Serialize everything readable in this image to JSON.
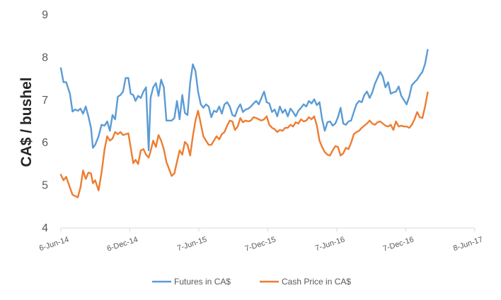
{
  "chart_data": {
    "type": "line",
    "title": "",
    "xlabel": "",
    "ylabel": "CA$ / bushel",
    "ylim": [
      4,
      9
    ],
    "yticks": [
      4,
      5,
      6,
      7,
      8,
      9
    ],
    "xlim": [
      "2014-06-06",
      "2017-06-08"
    ],
    "xticks": [
      {
        "date": "2014-06-06",
        "label": "6-Jun-14"
      },
      {
        "date": "2014-12-06",
        "label": "6-Dec-14"
      },
      {
        "date": "2015-06-07",
        "label": "7-Jun-15"
      },
      {
        "date": "2015-12-07",
        "label": "7-Dec-15"
      },
      {
        "date": "2016-06-07",
        "label": "7-Jun-16"
      },
      {
        "date": "2016-12-07",
        "label": "7-Dec-16"
      },
      {
        "date": "2017-06-08",
        "label": "8-Jun-17"
      }
    ],
    "grid": false,
    "legend_position": "bottom",
    "series": [
      {
        "name": "Futures in CA$",
        "color": "#5B9BD5",
        "points": [
          [
            "2014-06-06",
            7.75
          ],
          [
            "2014-06-13",
            7.42
          ],
          [
            "2014-06-20",
            7.42
          ],
          [
            "2014-06-30",
            7.15
          ],
          [
            "2014-07-07",
            6.73
          ],
          [
            "2014-07-14",
            6.78
          ],
          [
            "2014-07-21",
            6.75
          ],
          [
            "2014-07-28",
            6.8
          ],
          [
            "2014-08-04",
            6.68
          ],
          [
            "2014-08-11",
            6.85
          ],
          [
            "2014-08-18",
            6.62
          ],
          [
            "2014-08-25",
            6.35
          ],
          [
            "2014-08-30",
            5.88
          ],
          [
            "2014-09-05",
            5.95
          ],
          [
            "2014-09-14",
            6.15
          ],
          [
            "2014-09-22",
            6.42
          ],
          [
            "2014-09-30",
            6.4
          ],
          [
            "2014-10-07",
            6.5
          ],
          [
            "2014-10-14",
            6.28
          ],
          [
            "2014-10-21",
            6.65
          ],
          [
            "2014-10-28",
            6.55
          ],
          [
            "2014-11-04",
            7.08
          ],
          [
            "2014-11-11",
            7.12
          ],
          [
            "2014-11-18",
            7.2
          ],
          [
            "2014-11-25",
            7.52
          ],
          [
            "2014-12-02",
            7.52
          ],
          [
            "2014-12-08",
            7.15
          ],
          [
            "2014-12-15",
            7.12
          ],
          [
            "2014-12-21",
            6.98
          ],
          [
            "2014-12-28",
            7.1
          ],
          [
            "2015-01-04",
            7.05
          ],
          [
            "2015-01-11",
            7.2
          ],
          [
            "2015-01-18",
            7.3
          ],
          [
            "2015-01-25",
            5.82
          ],
          [
            "2015-01-30",
            7.05
          ],
          [
            "2015-02-06",
            7.3
          ],
          [
            "2015-02-13",
            7.4
          ],
          [
            "2015-02-20",
            7.1
          ],
          [
            "2015-02-27",
            7.48
          ],
          [
            "2015-03-06",
            7.3
          ],
          [
            "2015-03-13",
            6.52
          ],
          [
            "2015-03-27",
            6.52
          ],
          [
            "2015-04-03",
            6.58
          ],
          [
            "2015-04-10",
            6.98
          ],
          [
            "2015-04-17",
            6.55
          ],
          [
            "2015-04-24",
            7.12
          ],
          [
            "2015-05-01",
            6.7
          ],
          [
            "2015-05-08",
            6.65
          ],
          [
            "2015-05-15",
            7.4
          ],
          [
            "2015-05-22",
            7.84
          ],
          [
            "2015-05-29",
            7.68
          ],
          [
            "2015-06-05",
            7.2
          ],
          [
            "2015-06-12",
            6.9
          ],
          [
            "2015-06-19",
            6.82
          ],
          [
            "2015-06-26",
            6.9
          ],
          [
            "2015-07-03",
            6.85
          ],
          [
            "2015-07-10",
            6.6
          ],
          [
            "2015-07-17",
            6.75
          ],
          [
            "2015-07-24",
            6.72
          ],
          [
            "2015-07-31",
            6.85
          ],
          [
            "2015-08-07",
            6.68
          ],
          [
            "2015-08-14",
            6.9
          ],
          [
            "2015-08-21",
            6.95
          ],
          [
            "2015-08-28",
            6.85
          ],
          [
            "2015-09-04",
            6.65
          ],
          [
            "2015-09-11",
            6.62
          ],
          [
            "2015-09-18",
            6.8
          ],
          [
            "2015-09-25",
            6.9
          ],
          [
            "2015-10-02",
            6.72
          ],
          [
            "2015-10-09",
            6.78
          ],
          [
            "2015-10-16",
            6.8
          ],
          [
            "2015-10-23",
            6.85
          ],
          [
            "2015-10-30",
            6.92
          ],
          [
            "2015-11-06",
            6.98
          ],
          [
            "2015-11-13",
            6.9
          ],
          [
            "2015-11-20",
            7.05
          ],
          [
            "2015-11-27",
            7.2
          ],
          [
            "2015-12-04",
            6.95
          ],
          [
            "2015-12-11",
            6.92
          ],
          [
            "2015-12-18",
            6.72
          ],
          [
            "2015-12-25",
            6.78
          ],
          [
            "2016-01-01",
            6.62
          ],
          [
            "2016-01-08",
            6.85
          ],
          [
            "2016-01-15",
            6.7
          ],
          [
            "2016-01-22",
            6.78
          ],
          [
            "2016-01-29",
            6.62
          ],
          [
            "2016-02-05",
            6.8
          ],
          [
            "2016-02-12",
            6.72
          ],
          [
            "2016-02-19",
            6.62
          ],
          [
            "2016-02-26",
            6.75
          ],
          [
            "2016-03-04",
            6.82
          ],
          [
            "2016-03-11",
            6.9
          ],
          [
            "2016-03-18",
            6.85
          ],
          [
            "2016-03-25",
            6.98
          ],
          [
            "2016-04-01",
            6.92
          ],
          [
            "2016-04-08",
            7.02
          ],
          [
            "2016-04-15",
            6.88
          ],
          [
            "2016-04-22",
            6.95
          ],
          [
            "2016-04-29",
            6.55
          ],
          [
            "2016-05-06",
            6.28
          ],
          [
            "2016-05-13",
            6.48
          ],
          [
            "2016-05-20",
            6.5
          ],
          [
            "2016-05-27",
            6.4
          ],
          [
            "2016-06-03",
            6.45
          ],
          [
            "2016-06-10",
            6.6
          ],
          [
            "2016-06-17",
            6.82
          ],
          [
            "2016-06-24",
            6.45
          ],
          [
            "2016-07-01",
            6.42
          ],
          [
            "2016-07-08",
            6.5
          ],
          [
            "2016-07-15",
            6.52
          ],
          [
            "2016-07-22",
            6.72
          ],
          [
            "2016-07-29",
            6.9
          ],
          [
            "2016-08-05",
            6.98
          ],
          [
            "2016-08-12",
            6.95
          ],
          [
            "2016-08-19",
            7.12
          ],
          [
            "2016-08-26",
            7.2
          ],
          [
            "2016-09-02",
            7.05
          ],
          [
            "2016-09-09",
            7.18
          ],
          [
            "2016-09-16",
            7.38
          ],
          [
            "2016-09-23",
            7.52
          ],
          [
            "2016-09-30",
            7.66
          ],
          [
            "2016-10-07",
            7.55
          ],
          [
            "2016-10-14",
            7.3
          ],
          [
            "2016-10-21",
            7.42
          ],
          [
            "2016-10-28",
            7.15
          ],
          [
            "2016-11-04",
            7.18
          ],
          [
            "2016-11-11",
            7.2
          ],
          [
            "2016-11-18",
            7.32
          ],
          [
            "2016-11-25",
            7.1
          ],
          [
            "2016-12-02",
            7.0
          ],
          [
            "2016-12-09",
            6.9
          ],
          [
            "2016-12-16",
            7.08
          ],
          [
            "2016-12-23",
            7.35
          ],
          [
            "2016-12-30",
            7.42
          ],
          [
            "2017-01-06",
            7.48
          ],
          [
            "2017-01-13",
            7.58
          ],
          [
            "2017-01-20",
            7.66
          ],
          [
            "2017-01-27",
            7.85
          ],
          [
            "2017-02-03",
            8.18
          ]
        ]
      },
      {
        "name": "Cash Price in CA$",
        "color": "#ED7D31",
        "points": [
          [
            "2014-06-06",
            5.25
          ],
          [
            "2014-06-13",
            5.12
          ],
          [
            "2014-06-20",
            5.2
          ],
          [
            "2014-06-30",
            4.95
          ],
          [
            "2014-07-07",
            4.78
          ],
          [
            "2014-07-14",
            4.75
          ],
          [
            "2014-07-21",
            4.72
          ],
          [
            "2014-07-28",
            4.95
          ],
          [
            "2014-08-04",
            5.35
          ],
          [
            "2014-08-11",
            5.15
          ],
          [
            "2014-08-18",
            5.3
          ],
          [
            "2014-08-25",
            5.28
          ],
          [
            "2014-08-30",
            5.05
          ],
          [
            "2014-09-05",
            5.12
          ],
          [
            "2014-09-14",
            4.88
          ],
          [
            "2014-09-22",
            5.3
          ],
          [
            "2014-09-30",
            5.85
          ],
          [
            "2014-10-07",
            6.15
          ],
          [
            "2014-10-14",
            6.05
          ],
          [
            "2014-10-21",
            6.1
          ],
          [
            "2014-10-28",
            6.25
          ],
          [
            "2014-11-04",
            6.2
          ],
          [
            "2014-11-11",
            6.25
          ],
          [
            "2014-11-18",
            6.18
          ],
          [
            "2014-11-25",
            6.2
          ],
          [
            "2014-12-02",
            6.22
          ],
          [
            "2014-12-08",
            5.9
          ],
          [
            "2014-12-15",
            5.52
          ],
          [
            "2014-12-21",
            5.6
          ],
          [
            "2014-12-28",
            5.5
          ],
          [
            "2015-01-04",
            5.82
          ],
          [
            "2015-01-11",
            5.85
          ],
          [
            "2015-01-18",
            5.72
          ],
          [
            "2015-01-25",
            5.65
          ],
          [
            "2015-01-30",
            5.8
          ],
          [
            "2015-02-06",
            6.05
          ],
          [
            "2015-02-13",
            5.9
          ],
          [
            "2015-02-20",
            6.18
          ],
          [
            "2015-02-27",
            6.05
          ],
          [
            "2015-03-06",
            5.85
          ],
          [
            "2015-03-13",
            5.55
          ],
          [
            "2015-03-27",
            5.22
          ],
          [
            "2015-04-03",
            5.28
          ],
          [
            "2015-04-10",
            5.55
          ],
          [
            "2015-04-17",
            5.82
          ],
          [
            "2015-04-24",
            5.72
          ],
          [
            "2015-05-01",
            6.02
          ],
          [
            "2015-05-08",
            5.95
          ],
          [
            "2015-05-15",
            5.7
          ],
          [
            "2015-05-22",
            6.15
          ],
          [
            "2015-05-29",
            6.52
          ],
          [
            "2015-06-05",
            6.75
          ],
          [
            "2015-06-12",
            6.45
          ],
          [
            "2015-06-19",
            6.15
          ],
          [
            "2015-06-26",
            6.05
          ],
          [
            "2015-07-03",
            5.95
          ],
          [
            "2015-07-10",
            5.95
          ],
          [
            "2015-07-17",
            6.05
          ],
          [
            "2015-07-24",
            6.15
          ],
          [
            "2015-07-31",
            6.08
          ],
          [
            "2015-08-07",
            6.2
          ],
          [
            "2015-08-14",
            6.25
          ],
          [
            "2015-08-21",
            6.4
          ],
          [
            "2015-08-28",
            6.52
          ],
          [
            "2015-09-04",
            6.5
          ],
          [
            "2015-09-11",
            6.3
          ],
          [
            "2015-09-18",
            6.38
          ],
          [
            "2015-09-25",
            6.58
          ],
          [
            "2015-10-02",
            6.48
          ],
          [
            "2015-10-09",
            6.52
          ],
          [
            "2015-10-16",
            6.5
          ],
          [
            "2015-10-23",
            6.52
          ],
          [
            "2015-10-30",
            6.6
          ],
          [
            "2015-11-06",
            6.58
          ],
          [
            "2015-11-13",
            6.55
          ],
          [
            "2015-11-20",
            6.52
          ],
          [
            "2015-11-27",
            6.55
          ],
          [
            "2015-12-04",
            6.62
          ],
          [
            "2015-12-11",
            6.42
          ],
          [
            "2015-12-18",
            6.35
          ],
          [
            "2015-12-25",
            6.32
          ],
          [
            "2016-01-01",
            6.25
          ],
          [
            "2016-01-08",
            6.3
          ],
          [
            "2016-01-15",
            6.28
          ],
          [
            "2016-01-22",
            6.35
          ],
          [
            "2016-01-29",
            6.35
          ],
          [
            "2016-02-05",
            6.42
          ],
          [
            "2016-02-12",
            6.38
          ],
          [
            "2016-02-19",
            6.48
          ],
          [
            "2016-02-26",
            6.45
          ],
          [
            "2016-03-04",
            6.55
          ],
          [
            "2016-03-11",
            6.5
          ],
          [
            "2016-03-18",
            6.52
          ],
          [
            "2016-03-25",
            6.6
          ],
          [
            "2016-04-01",
            6.55
          ],
          [
            "2016-04-08",
            6.62
          ],
          [
            "2016-04-15",
            6.4
          ],
          [
            "2016-04-22",
            6.05
          ],
          [
            "2016-04-29",
            5.9
          ],
          [
            "2016-05-06",
            5.78
          ],
          [
            "2016-05-13",
            5.72
          ],
          [
            "2016-05-20",
            5.7
          ],
          [
            "2016-05-27",
            5.82
          ],
          [
            "2016-06-03",
            5.92
          ],
          [
            "2016-06-10",
            5.9
          ],
          [
            "2016-06-17",
            5.7
          ],
          [
            "2016-06-24",
            5.75
          ],
          [
            "2016-07-01",
            5.88
          ],
          [
            "2016-07-08",
            5.85
          ],
          [
            "2016-07-15",
            6.0
          ],
          [
            "2016-07-22",
            6.2
          ],
          [
            "2016-07-29",
            6.25
          ],
          [
            "2016-08-05",
            6.28
          ],
          [
            "2016-08-12",
            6.35
          ],
          [
            "2016-08-19",
            6.4
          ],
          [
            "2016-08-26",
            6.45
          ],
          [
            "2016-09-02",
            6.52
          ],
          [
            "2016-09-09",
            6.45
          ],
          [
            "2016-09-16",
            6.42
          ],
          [
            "2016-09-23",
            6.48
          ],
          [
            "2016-09-30",
            6.5
          ],
          [
            "2016-10-07",
            6.45
          ],
          [
            "2016-10-14",
            6.4
          ],
          [
            "2016-10-21",
            6.38
          ],
          [
            "2016-10-28",
            6.42
          ],
          [
            "2016-11-04",
            6.3
          ],
          [
            "2016-11-11",
            6.5
          ],
          [
            "2016-11-18",
            6.38
          ],
          [
            "2016-11-25",
            6.4
          ],
          [
            "2016-12-02",
            6.38
          ],
          [
            "2016-12-09",
            6.38
          ],
          [
            "2016-12-16",
            6.35
          ],
          [
            "2016-12-23",
            6.42
          ],
          [
            "2016-12-30",
            6.55
          ],
          [
            "2017-01-06",
            6.72
          ],
          [
            "2017-01-13",
            6.6
          ],
          [
            "2017-01-20",
            6.58
          ],
          [
            "2017-01-27",
            6.85
          ],
          [
            "2017-02-03",
            7.18
          ]
        ]
      }
    ]
  }
}
